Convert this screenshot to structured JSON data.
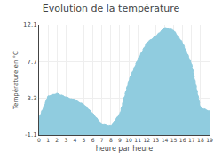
{
  "chart_data": {
    "type": "area",
    "title": "Evolution de la température",
    "xlabel": "heure par heure",
    "ylabel": "Température en °C",
    "x": [
      0,
      1,
      2,
      3,
      4,
      5,
      6,
      7,
      8,
      9,
      10,
      11,
      12,
      13,
      14,
      15,
      16,
      17,
      18,
      19
    ],
    "values": [
      1.0,
      3.6,
      3.9,
      3.5,
      3.1,
      2.6,
      1.5,
      0.2,
      0.0,
      1.5,
      5.5,
      8.0,
      10.0,
      10.8,
      11.8,
      11.5,
      10.0,
      7.5,
      2.2,
      1.8
    ],
    "color": "#90ccdf",
    "line_style": "dotted",
    "xlim": [
      0,
      19
    ],
    "xticks": [
      0,
      1,
      2,
      3,
      4,
      5,
      6,
      7,
      8,
      9,
      10,
      11,
      12,
      13,
      14,
      15,
      16,
      17,
      18,
      19
    ],
    "ylim": [
      -1.1,
      12.1
    ],
    "yticks": [
      -1.1,
      3.3,
      7.7,
      12.1
    ],
    "grid": true
  }
}
